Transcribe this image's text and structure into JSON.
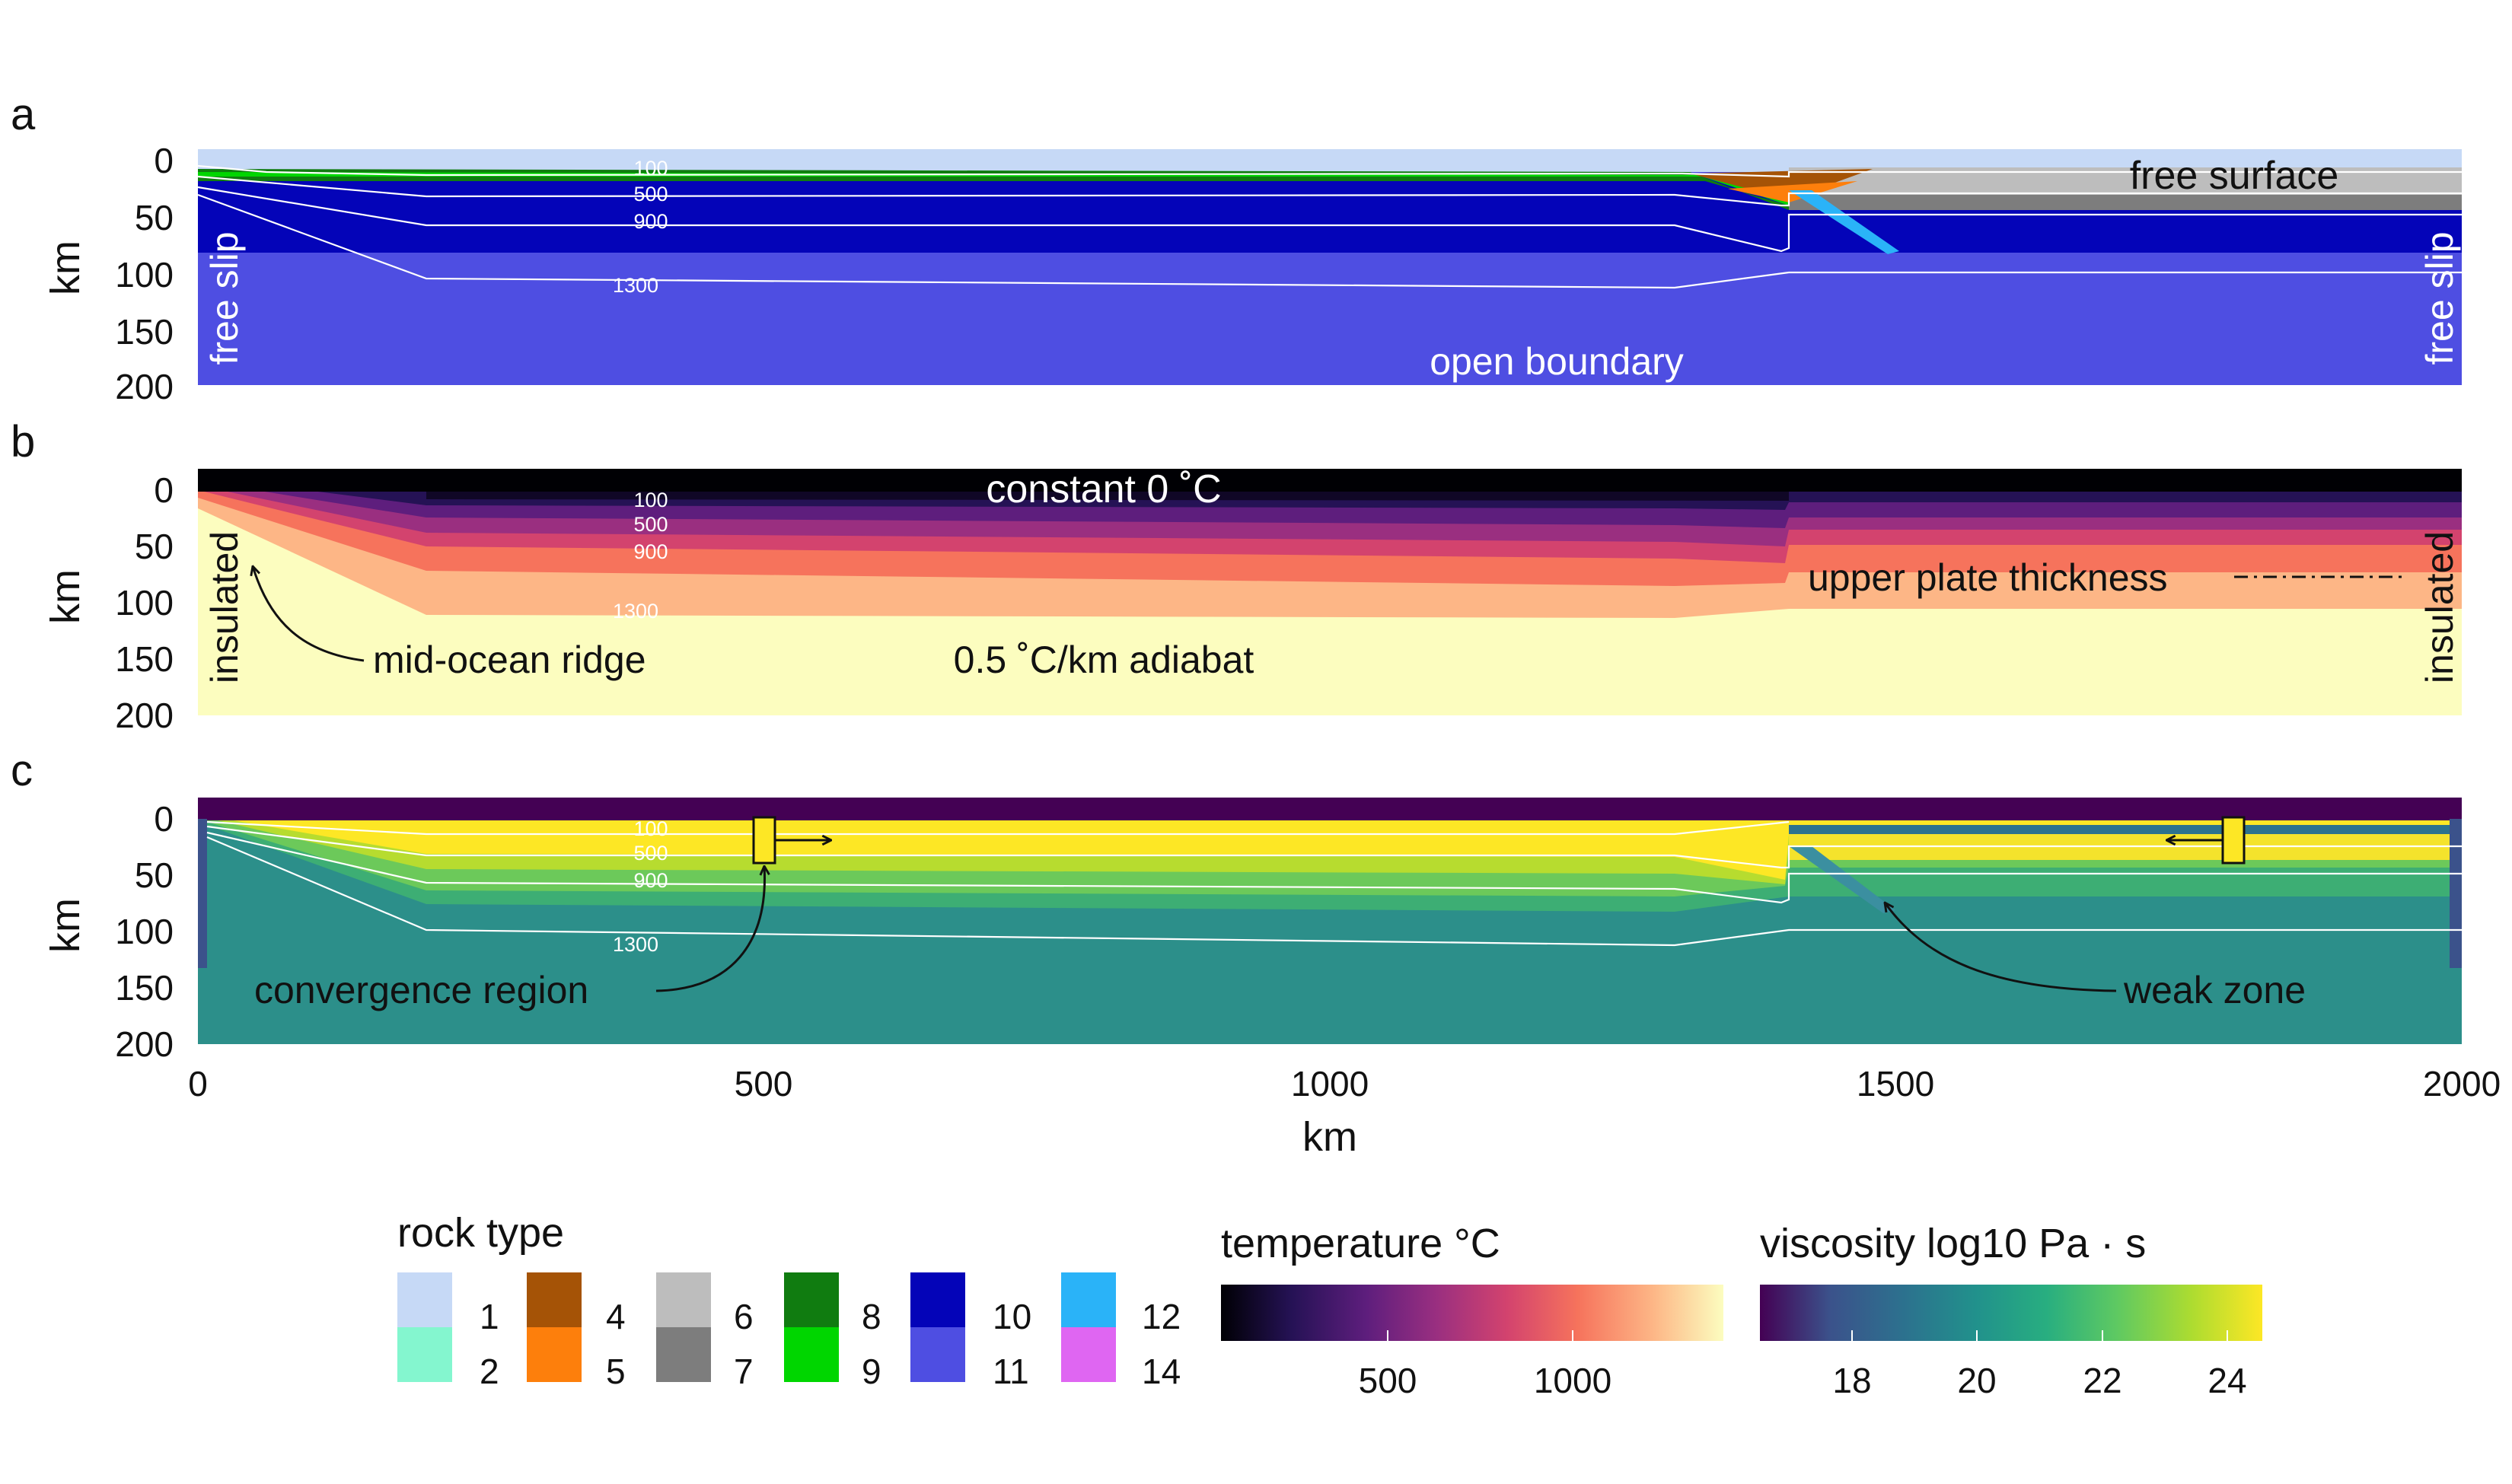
{
  "colors": {
    "rock": {
      "1": "#c6d9f6",
      "2": "#84f6cf",
      "4": "#a55306",
      "5": "#fd7f0c",
      "6": "#bdbdbd",
      "7": "#7d7d7d",
      "8": "#107c10",
      "9": "#00d600",
      "10": "#0404b8",
      "11": "#4e4ee2",
      "12": "#2ab3f8",
      "14": "#df66f2"
    },
    "temperature_stops": [
      "#000004",
      "#251255",
      "#5e1e7d",
      "#9a2f80",
      "#d3436e",
      "#f6735c",
      "#fdb686",
      "#fcfdbf"
    ],
    "viscosity_stops": [
      "#440154",
      "#3b528b",
      "#2c728e",
      "#21918c",
      "#28ae80",
      "#5ec962",
      "#addc30",
      "#fde725"
    ],
    "isotherm": "#ffffff",
    "text": "#111111"
  },
  "panels": {
    "a": {
      "label": "a",
      "free_surface": "free surface",
      "free_slip_left": "free slip",
      "free_slip_right": "free slip",
      "open_boundary": "open boundary",
      "isotherm_labels": [
        "100",
        "500",
        "900",
        "1300"
      ]
    },
    "b": {
      "label": "b",
      "constant": "constant 0 ˚C",
      "insulated_left": "insulated",
      "insulated_right": "insulated",
      "ridge": "mid-ocean ridge",
      "adiabat": "0.5 ˚C/km adiabat",
      "upper_plate": "upper plate thickness",
      "isotherm_labels": [
        "100",
        "500",
        "900",
        "1300"
      ]
    },
    "c": {
      "label": "c",
      "convergence": "convergence region",
      "weak_zone": "weak zone",
      "isotherm_labels": [
        "100",
        "500",
        "900",
        "1300"
      ]
    }
  },
  "axes": {
    "y_label": "km",
    "y_ticks": [
      "0",
      "50",
      "100",
      "150",
      "200"
    ],
    "x_label": "km",
    "x_ticks": [
      "0",
      "500",
      "1000",
      "1500",
      "2000"
    ]
  },
  "legend": {
    "rock_title": "rock type",
    "rock_items": [
      "1",
      "2",
      "4",
      "5",
      "6",
      "7",
      "8",
      "9",
      "10",
      "11",
      "12",
      "14"
    ],
    "temp_title": "temperature °C",
    "temp_ticks": [
      "500",
      "1000"
    ],
    "visc_title": "viscosity log10 Pa · s",
    "visc_ticks": [
      "18",
      "20",
      "22",
      "24"
    ]
  }
}
